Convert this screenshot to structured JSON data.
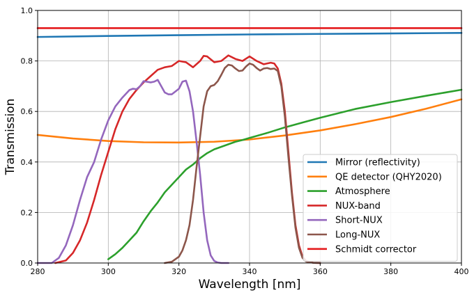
{
  "chart_data": {
    "type": "line",
    "xlabel": "Wavelength [nm]",
    "ylabel": "Transmission",
    "xlim": [
      280,
      400
    ],
    "ylim": [
      0.0,
      1.0
    ],
    "xticks": [
      280,
      300,
      320,
      340,
      360,
      380,
      400
    ],
    "yticks": [
      0.0,
      0.2,
      0.4,
      0.6,
      0.8,
      1.0
    ],
    "xtick_labels": [
      "280",
      "300",
      "320",
      "340",
      "360",
      "380",
      "400"
    ],
    "ytick_labels": [
      "0.0",
      "0.2",
      "0.4",
      "0.6",
      "0.8",
      "1.0"
    ],
    "grid": true,
    "legend_position": "lower-right",
    "series": [
      {
        "name": "Mirror (reflectivity)",
        "color": "#1f77b4",
        "x": [
          280,
          300,
          320,
          340,
          360,
          380,
          400
        ],
        "y": [
          0.895,
          0.899,
          0.902,
          0.905,
          0.907,
          0.909,
          0.911
        ]
      },
      {
        "name": "QE detector (QHY2020)",
        "color": "#ff7f0e",
        "x": [
          280,
          290,
          300,
          310,
          320,
          330,
          340,
          350,
          360,
          370,
          380,
          390,
          400
        ],
        "y": [
          0.507,
          0.493,
          0.483,
          0.478,
          0.477,
          0.48,
          0.489,
          0.505,
          0.525,
          0.55,
          0.578,
          0.611,
          0.648
        ]
      },
      {
        "name": "Atmosphere",
        "color": "#2ca02c",
        "x": [
          300,
          302,
          304,
          306,
          308,
          310,
          312,
          314,
          316,
          318,
          320,
          322,
          324,
          326,
          328,
          330,
          332,
          334,
          336,
          338,
          340,
          345,
          350,
          355,
          360,
          370,
          380,
          390,
          400
        ],
        "y": [
          0.015,
          0.035,
          0.06,
          0.09,
          0.12,
          0.165,
          0.205,
          0.24,
          0.28,
          0.31,
          0.34,
          0.37,
          0.39,
          0.415,
          0.435,
          0.45,
          0.46,
          0.47,
          0.48,
          0.487,
          0.495,
          0.515,
          0.537,
          0.556,
          0.575,
          0.61,
          0.637,
          0.662,
          0.686
        ]
      },
      {
        "name": "NUX-band",
        "color": "#d62728",
        "x": [
          285,
          288,
          290,
          292,
          294,
          296,
          298,
          300,
          302,
          304,
          306,
          308,
          310,
          312,
          314,
          316,
          318,
          320,
          322,
          324,
          326,
          327,
          328,
          330,
          332,
          334,
          336,
          338,
          340,
          342,
          344,
          346,
          347,
          348,
          349,
          350,
          351,
          352,
          353,
          354,
          355,
          356,
          358,
          360
        ],
        "y": [
          0.0,
          0.01,
          0.04,
          0.09,
          0.16,
          0.25,
          0.35,
          0.44,
          0.53,
          0.6,
          0.65,
          0.685,
          0.715,
          0.74,
          0.765,
          0.775,
          0.78,
          0.8,
          0.795,
          0.775,
          0.8,
          0.82,
          0.818,
          0.795,
          0.8,
          0.822,
          0.808,
          0.8,
          0.818,
          0.8,
          0.787,
          0.793,
          0.79,
          0.77,
          0.71,
          0.6,
          0.44,
          0.28,
          0.15,
          0.07,
          0.025,
          0.008,
          0.001,
          0.0
        ]
      },
      {
        "name": "Short-NUX",
        "color": "#9467bd",
        "x": [
          280,
          284,
          286,
          288,
          290,
          292,
          294,
          296,
          298,
          300,
          302,
          304,
          306,
          307,
          308,
          309,
          310,
          312,
          313,
          314,
          315,
          316,
          317,
          318,
          320,
          321,
          322,
          323,
          324,
          325,
          326,
          327,
          328,
          329,
          330,
          331,
          332,
          334
        ],
        "y": [
          0.0,
          0.0,
          0.02,
          0.07,
          0.15,
          0.25,
          0.34,
          0.4,
          0.49,
          0.565,
          0.62,
          0.655,
          0.685,
          0.69,
          0.688,
          0.7,
          0.72,
          0.715,
          0.718,
          0.725,
          0.7,
          0.675,
          0.668,
          0.668,
          0.69,
          0.718,
          0.722,
          0.68,
          0.6,
          0.48,
          0.35,
          0.2,
          0.09,
          0.03,
          0.008,
          0.002,
          0.0,
          0.0
        ]
      },
      {
        "name": "Long-NUX",
        "color": "#8c564b",
        "x": [
          316,
          318,
          320,
          321,
          322,
          323,
          324,
          325,
          326,
          327,
          328,
          329,
          330,
          331,
          332,
          333,
          334,
          335,
          336,
          337,
          338,
          339,
          340,
          341,
          342,
          343,
          344,
          345,
          346,
          347,
          348,
          349,
          350,
          351,
          352,
          353,
          354,
          355,
          356,
          358,
          360
        ],
        "y": [
          0.0,
          0.005,
          0.025,
          0.05,
          0.09,
          0.15,
          0.25,
          0.38,
          0.5,
          0.62,
          0.68,
          0.7,
          0.705,
          0.72,
          0.745,
          0.772,
          0.785,
          0.782,
          0.77,
          0.76,
          0.762,
          0.778,
          0.79,
          0.785,
          0.772,
          0.762,
          0.77,
          0.772,
          0.768,
          0.77,
          0.76,
          0.7,
          0.58,
          0.42,
          0.27,
          0.14,
          0.06,
          0.02,
          0.006,
          0.001,
          0.0
        ]
      },
      {
        "name": "Schmidt corrector",
        "color": "#e41a1c",
        "x": [
          280,
          400
        ],
        "y": [
          0.93,
          0.93
        ]
      }
    ]
  }
}
